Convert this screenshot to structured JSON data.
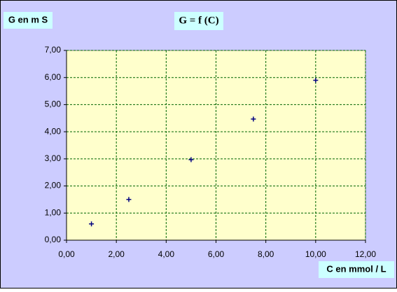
{
  "chart_data": {
    "type": "scatter",
    "title": "G = f (C)",
    "y_label": "G  en m S",
    "x_label": "C en mmol / L",
    "x": [
      1,
      2.5,
      5,
      7.5,
      10
    ],
    "values": [
      0.6,
      1.5,
      2.97,
      4.47,
      5.9
    ],
    "color": "#000080",
    "xlim": [
      0,
      12
    ],
    "ylim": [
      0,
      7
    ],
    "xticks": [
      {
        "value": 0,
        "label": "0,00"
      },
      {
        "value": 2,
        "label": "2,00"
      },
      {
        "value": 4,
        "label": "4,00"
      },
      {
        "value": 6,
        "label": "6,00"
      },
      {
        "value": 8,
        "label": "8,00"
      },
      {
        "value": 10,
        "label": "10,00"
      },
      {
        "value": 12,
        "label": "12,00"
      }
    ],
    "yticks": [
      {
        "value": 0,
        "label": "0,00"
      },
      {
        "value": 1,
        "label": "1,00"
      },
      {
        "value": 2,
        "label": "2,00"
      },
      {
        "value": 3,
        "label": "3,00"
      },
      {
        "value": 4,
        "label": "4,00"
      },
      {
        "value": 5,
        "label": "5,00"
      },
      {
        "value": 6,
        "label": "6,00"
      },
      {
        "value": 7,
        "label": "7,00"
      }
    ],
    "grid": true
  }
}
